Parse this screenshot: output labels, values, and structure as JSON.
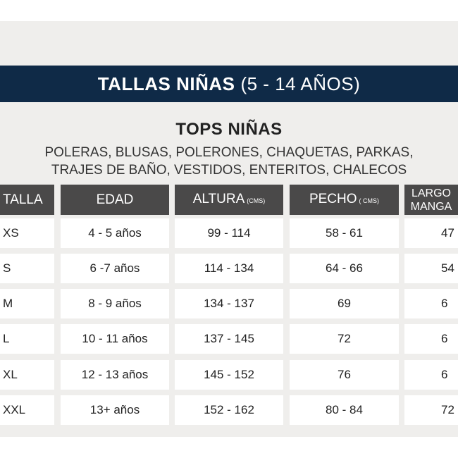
{
  "banner": {
    "title_bold": "TALLAS NIÑAS",
    "title_rest": "(5 - 14 AÑOS)"
  },
  "section": {
    "title": "TOPS NIÑAS",
    "line1": "POLERAS, BLUSAS, POLERONES, CHAQUETAS, PARKAS,",
    "line2": "TRAJES DE BAÑO, VESTIDOS, ENTERITOS, CHALECOS"
  },
  "colors": {
    "banner": "#0f2a47",
    "header": "#4a4949",
    "background": "#efeeec"
  },
  "table": {
    "headers": [
      {
        "label": "TALLA",
        "unit": ""
      },
      {
        "label": "EDAD",
        "unit": ""
      },
      {
        "label": "ALTURA",
        "unit": "(CMS)"
      },
      {
        "label": "PECHO",
        "unit": "( CMS)"
      },
      {
        "label": "LARGO",
        "label2": "MANGA",
        "unit": ""
      }
    ],
    "rows": [
      [
        "XS",
        "4 - 5 años",
        "99 - 114",
        "58 - 61",
        "47"
      ],
      [
        "S",
        "6 -7 años",
        "114 - 134",
        "64 - 66",
        "54"
      ],
      [
        "M",
        "8 - 9 años",
        "134 - 137",
        "69",
        "6"
      ],
      [
        "L",
        "10 - 11 años",
        "137 - 145",
        "72",
        "6"
      ],
      [
        "XL",
        "12 - 13 años",
        "145 - 152",
        "76",
        "6"
      ],
      [
        "XXL",
        "13+ años",
        "152 - 162",
        "80 - 84",
        "72"
      ]
    ]
  }
}
